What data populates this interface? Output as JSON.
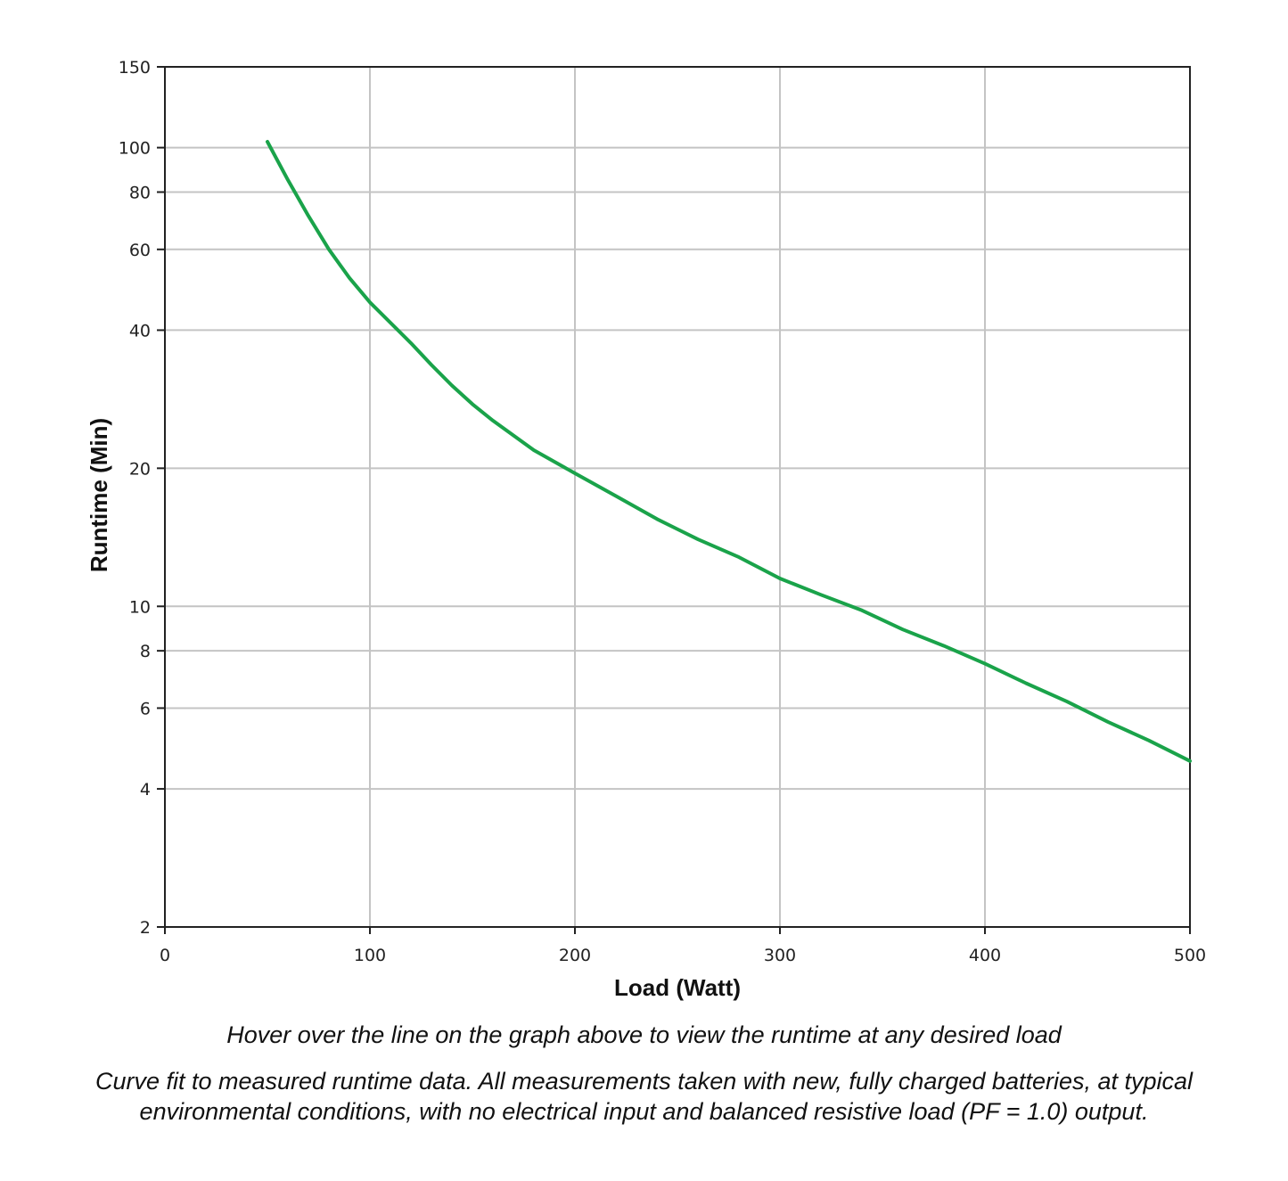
{
  "chart_data": {
    "type": "line",
    "xlabel": "Load (Watt)",
    "ylabel": "Runtime (Min)",
    "xlim": [
      0,
      500
    ],
    "ylim": [
      2,
      150
    ],
    "y_scale": "log",
    "grid": true,
    "x_ticks": [
      0,
      100,
      200,
      300,
      400,
      500
    ],
    "y_ticks": [
      2,
      4,
      6,
      8,
      10,
      20,
      40,
      60,
      80,
      100,
      150
    ],
    "line_color": "#1aa34a",
    "series": [
      {
        "x": [
          50,
          60,
          70,
          80,
          90,
          100,
          120,
          130,
          140,
          150,
          160,
          180,
          200,
          220,
          240,
          260,
          280,
          300,
          320,
          340,
          360,
          380,
          400,
          420,
          440,
          460,
          480,
          500
        ],
        "y": [
          103,
          85,
          71,
          60,
          52,
          46,
          37.5,
          33.6,
          30.3,
          27.6,
          25.4,
          21.9,
          19.5,
          17.4,
          15.5,
          14.0,
          12.8,
          11.5,
          10.6,
          9.8,
          8.9,
          8.2,
          7.5,
          6.8,
          6.2,
          5.6,
          5.1,
          4.6
        ]
      }
    ]
  },
  "captions": {
    "hover_note": "Hover over the line on the graph above to view the runtime at any desired load",
    "footnote_line1": "Curve fit to measured runtime data. All measurements taken with new, fully charged batteries, at typical",
    "footnote_line2": "environmental conditions, with no electrical input and balanced resistive load (PF = 1.0) output."
  }
}
